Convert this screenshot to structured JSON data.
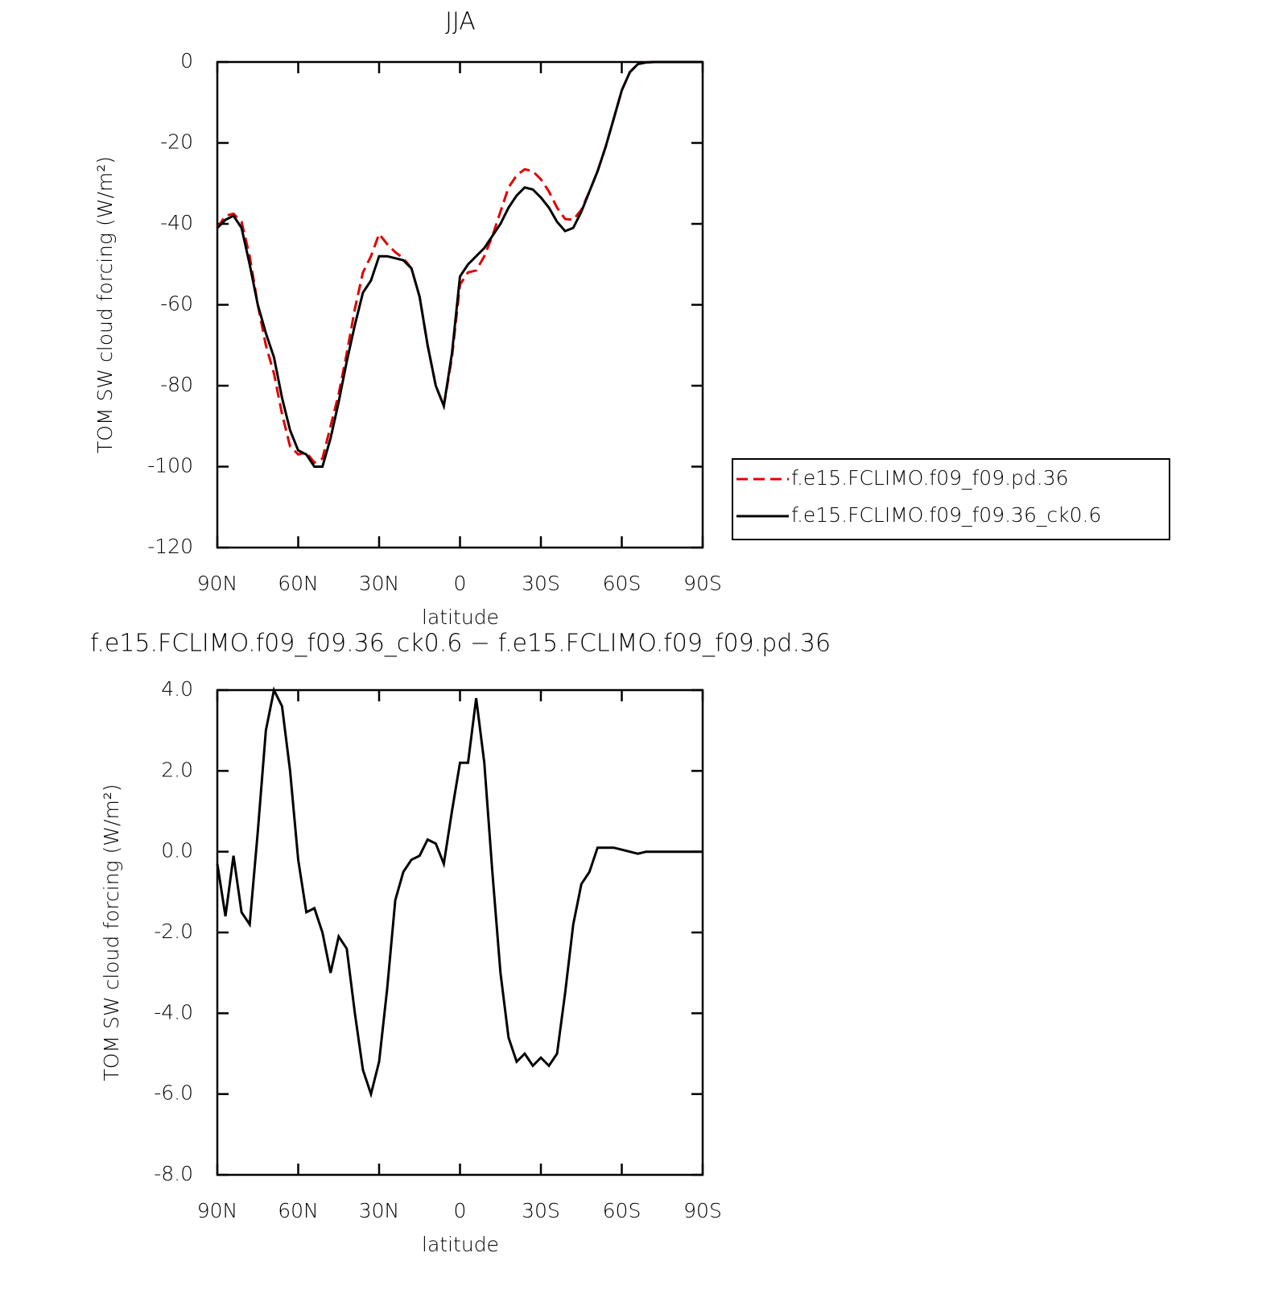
{
  "chart_data": [
    {
      "type": "line",
      "title": "JJA",
      "xlabel": "latitude",
      "ylabel": "TOM SW cloud forcing (W/m²)",
      "x": [
        90,
        87,
        84,
        81,
        78,
        75,
        72,
        69,
        66,
        63,
        60,
        57,
        54,
        51,
        48,
        45,
        42,
        39,
        36,
        33,
        30,
        27,
        24,
        21,
        18,
        15,
        12,
        9,
        6,
        3,
        0,
        -3,
        -6,
        -9,
        -12,
        -15,
        -18,
        -21,
        -24,
        -27,
        -30,
        -33,
        -36,
        -39,
        -42,
        -45,
        -48,
        -51,
        -54,
        -57,
        -60,
        -63,
        -66,
        -69,
        -72,
        -75,
        -78,
        -81,
        -84,
        -87,
        -90
      ],
      "series": [
        {
          "name": "f.e15.FCLIMO.f09_f09.pd.36",
          "color": "#e00000",
          "dashed": true,
          "values": [
            -41,
            -38,
            -37.5,
            -39.5,
            -48,
            -60,
            -70,
            -77,
            -87,
            -95,
            -97,
            -96.5,
            -99,
            -98,
            -90,
            -82,
            -72,
            -61,
            -52,
            -48,
            -42.5,
            -45,
            -47,
            -48.5,
            -51,
            -58,
            -70,
            -80,
            -85,
            -73,
            -55,
            -52,
            -51.5,
            -48,
            -43,
            -37,
            -31,
            -28,
            -26.5,
            -27,
            -29,
            -32,
            -36,
            -38.8,
            -39,
            -36.5,
            -32,
            -27,
            -21,
            -14,
            -7,
            -2.5,
            -0.5,
            -0.1,
            0,
            0,
            0,
            0,
            0,
            0,
            0
          ]
        },
        {
          "name": "f.e15.FCLIMO.f09_f09.36_ck0.6",
          "color": "#000000",
          "dashed": false,
          "values": [
            -41,
            -39,
            -38,
            -41,
            -50,
            -60,
            -67,
            -73,
            -83,
            -91,
            -96,
            -97,
            -100,
            -100,
            -93,
            -84,
            -74,
            -65,
            -57,
            -54,
            -48,
            -48,
            -48.5,
            -49,
            -51,
            -58,
            -70,
            -80,
            -85,
            -72,
            -53,
            -50,
            -48,
            -46,
            -43,
            -40,
            -36,
            -33,
            -31,
            -31.5,
            -33.5,
            -36,
            -39.5,
            -41.8,
            -41,
            -37,
            -32,
            -27,
            -21,
            -14,
            -7,
            -2.5,
            -0.5,
            -0.1,
            0,
            0,
            0,
            0,
            0,
            0,
            0
          ]
        }
      ],
      "xlim": [
        90,
        -90
      ],
      "xticks": [
        {
          "value": 90,
          "label": "90N"
        },
        {
          "value": 60,
          "label": "60N"
        },
        {
          "value": 30,
          "label": "30N"
        },
        0,
        {
          "value": -30,
          "label": "30S"
        },
        {
          "value": -60,
          "label": "60S"
        },
        {
          "value": -90,
          "label": "90S"
        }
      ],
      "ylim": [
        -120,
        0
      ],
      "yticks": [
        -120,
        -100,
        -80,
        -60,
        -40,
        -20,
        0
      ],
      "legend": "right"
    },
    {
      "type": "line",
      "title": "f.e15.FCLIMO.f09_f09.36_ck0.6 − f.e15.FCLIMO.f09_f09.pd.36",
      "xlabel": "latitude",
      "ylabel": "TOM SW cloud forcing (W/m²)",
      "x": [
        90,
        87,
        84,
        81,
        78,
        75,
        72,
        69,
        66,
        63,
        60,
        57,
        54,
        51,
        48,
        45,
        42,
        39,
        36,
        33,
        30,
        27,
        24,
        21,
        18,
        15,
        12,
        9,
        6,
        3,
        0,
        -3,
        -6,
        -9,
        -12,
        -15,
        -18,
        -21,
        -24,
        -27,
        -30,
        -33,
        -36,
        -39,
        -42,
        -45,
        -48,
        -51,
        -54,
        -57,
        -60,
        -63,
        -66,
        -69,
        -72,
        -75,
        -78,
        -81,
        -84,
        -87,
        -90
      ],
      "values": [
        -0.3,
        -1.6,
        -0.1,
        -1.5,
        -1.8,
        0.5,
        3.0,
        4.0,
        3.6,
        2.0,
        -0.2,
        -1.5,
        -1.4,
        -2.0,
        -3.0,
        -2.1,
        -2.4,
        -4.0,
        -5.4,
        -6.0,
        -5.2,
        -3.4,
        -1.2,
        -0.5,
        -0.2,
        -0.1,
        0.3,
        0.2,
        -0.3,
        1.0,
        2.2,
        2.2,
        3.8,
        2.2,
        -0.5,
        -3.0,
        -4.6,
        -5.2,
        -5.0,
        -5.3,
        -5.1,
        -5.3,
        -5.0,
        -3.5,
        -1.8,
        -0.8,
        -0.5,
        0.1,
        0.1,
        0.1,
        0.05,
        0,
        -0.05,
        0,
        0,
        0,
        0,
        0,
        0,
        0,
        0
      ],
      "color": "#000000",
      "xlim": [
        90,
        -90
      ],
      "xticks": [
        {
          "value": 90,
          "label": "90N"
        },
        {
          "value": 60,
          "label": "60N"
        },
        {
          "value": 30,
          "label": "30N"
        },
        0,
        {
          "value": -30,
          "label": "30S"
        },
        {
          "value": -60,
          "label": "60S"
        },
        {
          "value": -90,
          "label": "90S"
        }
      ],
      "ylim": [
        -8,
        4
      ],
      "yticks": [
        {
          "value": -8,
          "label": "-8.0"
        },
        {
          "value": -6,
          "label": "-6.0"
        },
        {
          "value": -4,
          "label": "-4.0"
        },
        {
          "value": -2,
          "label": "-2.0"
        },
        {
          "value": 0,
          "label": "0.0"
        },
        {
          "value": 2,
          "label": "2.0"
        },
        {
          "value": 4,
          "label": "4.0"
        }
      ]
    }
  ]
}
